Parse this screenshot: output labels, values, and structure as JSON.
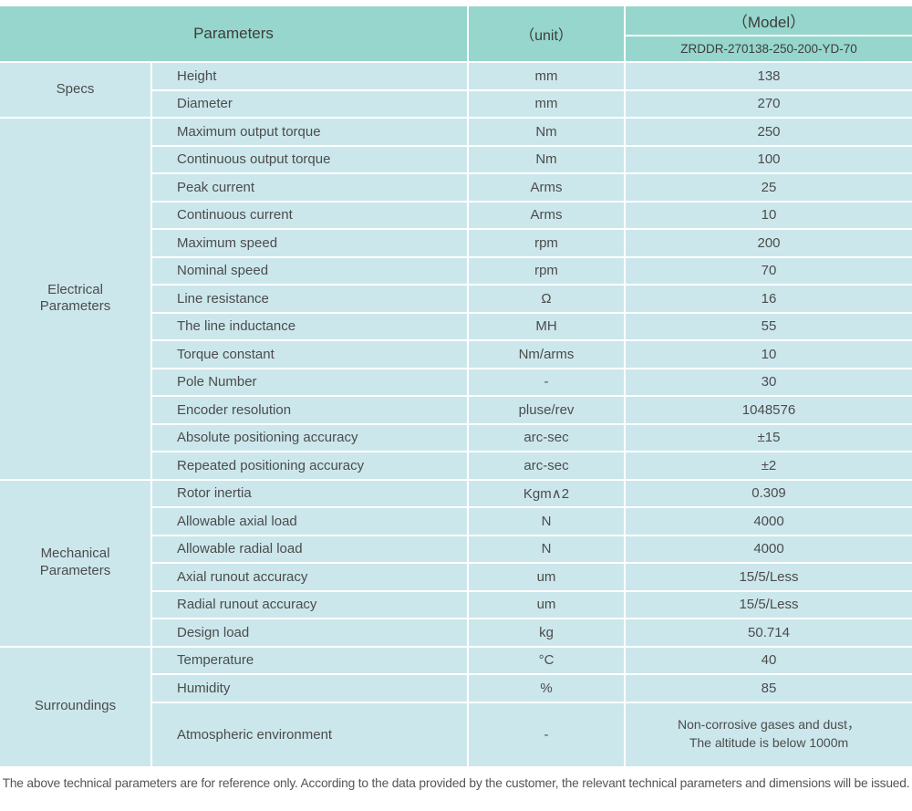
{
  "header": {
    "parameters_label": "Parameters",
    "unit_label": "（unit）",
    "model_label": "（Model）",
    "model_number": "ZRDDR-270138-250-200-YD-70"
  },
  "sections": [
    {
      "group": "Specs",
      "rows": [
        {
          "name": "Height",
          "unit": "mm",
          "value": "138"
        },
        {
          "name": "Diameter",
          "unit": "mm",
          "value": "270"
        }
      ]
    },
    {
      "group": "Electrical\nParameters",
      "rows": [
        {
          "name": "Maximum output torque",
          "unit": "Nm",
          "value": "250"
        },
        {
          "name": "Continuous output torque",
          "unit": "Nm",
          "value": "100"
        },
        {
          "name": "Peak current",
          "unit": "Arms",
          "value": "25"
        },
        {
          "name": "Continuous current",
          "unit": "Arms",
          "value": "10"
        },
        {
          "name": "Maximum speed",
          "unit": "rpm",
          "value": "200"
        },
        {
          "name": "Nominal speed",
          "unit": "rpm",
          "value": "70"
        },
        {
          "name": "Line resistance",
          "unit": "Ω",
          "value": "16"
        },
        {
          "name": "The line inductance",
          "unit": "MH",
          "value": "55"
        },
        {
          "name": "Torque constant",
          "unit": "Nm/arms",
          "value": "10"
        },
        {
          "name": "Pole Number",
          "unit": "-",
          "value": "30"
        },
        {
          "name": "Encoder resolution",
          "unit": "pluse/rev",
          "value": "1048576"
        },
        {
          "name": "Absolute positioning accuracy",
          "unit": "arc-sec",
          "value": "±15"
        },
        {
          "name": "Repeated positioning accuracy",
          "unit": "arc-sec",
          "value": "±2"
        }
      ]
    },
    {
      "group": "Mechanical\nParameters",
      "rows": [
        {
          "name": "Rotor inertia",
          "unit": "Kgm∧2",
          "value": "0.309"
        },
        {
          "name": "Allowable axial load",
          "unit": "N",
          "value": "4000"
        },
        {
          "name": "Allowable radial load",
          "unit": "N",
          "value": "4000"
        },
        {
          "name": "Axial runout accuracy",
          "unit": "um",
          "value": "15/5/Less"
        },
        {
          "name": "Radial runout accuracy",
          "unit": "um",
          "value": "15/5/Less"
        },
        {
          "name": "Design load",
          "unit": "kg",
          "value": "50.714"
        }
      ]
    },
    {
      "group": "Surroundings",
      "rows": [
        {
          "name": "Temperature",
          "unit": "°C",
          "value": "40"
        },
        {
          "name": "Humidity",
          "unit": "%",
          "value": "85"
        },
        {
          "name": "Atmospheric environment",
          "unit": "-",
          "value": "Non-corrosive gases and dust，\nThe altitude is below 1000m",
          "tall": true
        }
      ]
    }
  ],
  "footer": {
    "note": "The above technical parameters are for reference only. According to the data provided by the customer, the relevant technical parameters and dimensions will be issued."
  },
  "colors": {
    "header_bg": "#96d6cc",
    "cell_bg": "#cbe7ec",
    "separator": "#ffffff",
    "text": "#4c4c4c"
  }
}
